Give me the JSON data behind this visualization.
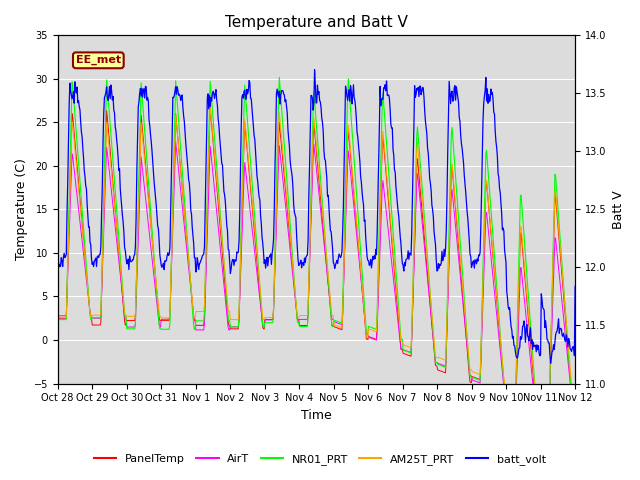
{
  "title": "Temperature and Batt V",
  "xlabel": "Time",
  "ylabel_left": "Temperature (C)",
  "ylabel_right": "Batt V",
  "ylim_left": [
    -5,
    35
  ],
  "ylim_right": [
    11.0,
    14.0
  ],
  "yticks_left": [
    -5,
    0,
    5,
    10,
    15,
    20,
    25,
    30,
    35
  ],
  "yticks_right": [
    11.0,
    11.5,
    12.0,
    12.5,
    13.0,
    13.5,
    14.0
  ],
  "xtick_labels": [
    "Oct 28",
    "Oct 29",
    "Oct 30",
    "Oct 31",
    "Nov 1",
    "Nov 2",
    "Nov 3",
    "Nov 4",
    "Nov 5",
    "Nov 6",
    "Nov 7",
    "Nov 8",
    "Nov 9",
    "Nov 10",
    "Nov 11",
    "Nov 12"
  ],
  "annotation_text": "EE_met",
  "annotation_bg": "#FFFF99",
  "annotation_color": "#8B0000",
  "background_color": "#DCDCDC",
  "colors": {
    "PanelTemp": "#FF0000",
    "AirT": "#FF00FF",
    "NR01_PRT": "#00FF00",
    "AM25T_PRT": "#FFA500",
    "batt_volt": "#0000FF"
  },
  "legend_labels": [
    "PanelTemp",
    "AirT",
    "NR01_PRT",
    "AM25T_PRT",
    "batt_volt"
  ]
}
